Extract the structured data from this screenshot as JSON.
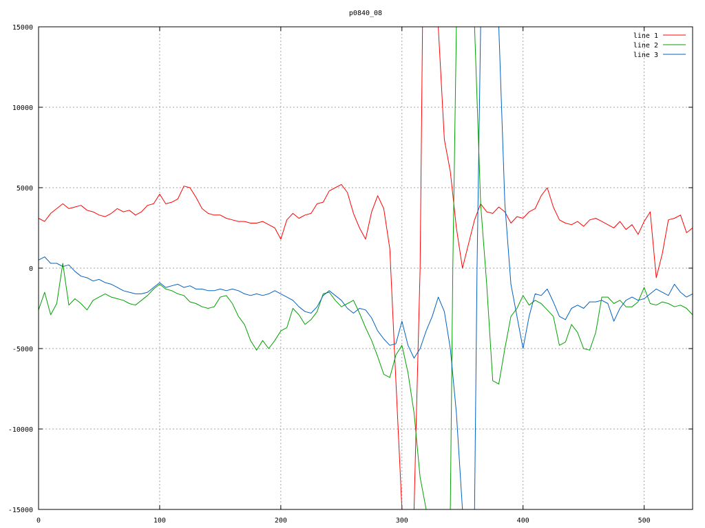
{
  "chart_data": {
    "type": "line",
    "title": "p0840_08",
    "xlabel": "",
    "ylabel": "",
    "xlim": [
      0,
      540
    ],
    "ylim": [
      -15000,
      15000
    ],
    "xticks": [
      0,
      100,
      200,
      300,
      400,
      500
    ],
    "yticks": [
      -15000,
      -10000,
      -5000,
      0,
      5000,
      10000,
      15000
    ],
    "grid": true,
    "legend_position": "top-right",
    "series": [
      {
        "name": "line 1",
        "color": "#ff0000",
        "x": [
          0,
          5,
          10,
          15,
          20,
          25,
          30,
          35,
          40,
          45,
          50,
          55,
          60,
          65,
          70,
          75,
          80,
          85,
          90,
          95,
          100,
          105,
          110,
          115,
          120,
          125,
          130,
          135,
          140,
          145,
          150,
          155,
          160,
          165,
          170,
          175,
          180,
          185,
          190,
          195,
          200,
          205,
          210,
          215,
          220,
          225,
          230,
          235,
          240,
          245,
          250,
          255,
          260,
          265,
          270,
          275,
          280,
          285,
          290,
          295,
          300,
          305,
          310,
          315,
          317,
          318,
          319,
          320,
          325,
          330,
          335,
          340,
          345,
          350,
          355,
          360,
          365,
          370,
          375,
          380,
          385,
          390,
          395,
          400,
          405,
          410,
          415,
          420,
          425,
          430,
          435,
          440,
          445,
          450,
          455,
          460,
          465,
          470,
          475,
          480,
          485,
          490,
          495,
          500,
          505,
          510,
          515,
          520,
          525,
          530,
          535,
          540
        ],
        "y": [
          3100,
          2900,
          3400,
          3700,
          4000,
          3700,
          3800,
          3900,
          3600,
          3500,
          3300,
          3200,
          3400,
          3700,
          3500,
          3600,
          3300,
          3500,
          3900,
          4000,
          4600,
          4000,
          4100,
          4300,
          5100,
          5000,
          4400,
          3700,
          3400,
          3300,
          3300,
          3100,
          3000,
          2900,
          2900,
          2800,
          2800,
          2900,
          2700,
          2500,
          1800,
          3000,
          3400,
          3100,
          3300,
          3400,
          4000,
          4100,
          4800,
          5000,
          5200,
          4700,
          3400,
          2500,
          1800,
          3500,
          4500,
          3700,
          1200,
          -7000,
          -15000,
          -15000,
          -15000,
          0,
          15000,
          15000,
          15000,
          15000,
          15000,
          15000,
          8000,
          6000,
          2500,
          0,
          1500,
          3000,
          4000,
          3500,
          3400,
          3800,
          3500,
          2800,
          3200,
          3100,
          3500,
          3700,
          4500,
          5000,
          3800,
          3000,
          2800,
          2700,
          2900,
          2600,
          3000,
          3100,
          2900,
          2700,
          2500,
          2900,
          2400,
          2700,
          2100,
          2900,
          3500,
          -600,
          900,
          3000,
          3100,
          3300,
          2200,
          2500
        ]
      },
      {
        "name": "line 2",
        "color": "#00a000",
        "x": [
          0,
          5,
          10,
          15,
          20,
          25,
          30,
          35,
          40,
          45,
          50,
          55,
          60,
          65,
          70,
          75,
          80,
          85,
          90,
          95,
          100,
          105,
          110,
          115,
          120,
          125,
          130,
          135,
          140,
          145,
          150,
          155,
          160,
          165,
          170,
          175,
          180,
          185,
          190,
          195,
          200,
          205,
          210,
          215,
          220,
          225,
          230,
          235,
          240,
          245,
          250,
          255,
          260,
          265,
          270,
          275,
          280,
          285,
          290,
          295,
          300,
          305,
          310,
          315,
          320,
          325,
          330,
          335,
          340,
          342,
          345,
          350,
          355,
          360,
          365,
          370,
          375,
          380,
          385,
          390,
          395,
          400,
          405,
          410,
          415,
          420,
          425,
          430,
          435,
          440,
          445,
          450,
          455,
          460,
          465,
          470,
          475,
          480,
          485,
          490,
          495,
          500,
          505,
          510,
          515,
          520,
          525,
          530,
          535,
          540
        ],
        "y": [
          -2600,
          -1500,
          -2900,
          -2200,
          300,
          -2300,
          -1900,
          -2200,
          -2600,
          -2000,
          -1800,
          -1600,
          -1800,
          -1900,
          -2000,
          -2200,
          -2300,
          -2000,
          -1700,
          -1300,
          -1000,
          -1300,
          -1400,
          -1600,
          -1700,
          -2100,
          -2200,
          -2400,
          -2500,
          -2400,
          -1800,
          -1700,
          -2200,
          -3000,
          -3500,
          -4500,
          -5100,
          -4500,
          -5000,
          -4500,
          -3900,
          -3700,
          -2500,
          -2900,
          -3500,
          -3200,
          -2700,
          -1600,
          -1500,
          -2000,
          -2400,
          -2200,
          -2000,
          -2800,
          -3700,
          -4500,
          -5500,
          -6600,
          -6800,
          -5400,
          -4800,
          -6500,
          -9000,
          -13000,
          -15000,
          -15000,
          -15000,
          -15000,
          -15000,
          0,
          15000,
          15000,
          15000,
          15000,
          4000,
          -1000,
          -7000,
          -7200,
          -5000,
          -3000,
          -2500,
          -1700,
          -2300,
          -2000,
          -2200,
          -2600,
          -3000,
          -4800,
          -4600,
          -3500,
          -4000,
          -5000,
          -5100,
          -4000,
          -1800,
          -1800,
          -2200,
          -2000,
          -2400,
          -2400,
          -2100,
          -1200,
          -2200,
          -2300,
          -2100,
          -2200,
          -2400,
          -2300,
          -2500,
          -2900
        ]
      },
      {
        "name": "line 3",
        "color": "#0060c0",
        "x": [
          0,
          5,
          10,
          15,
          20,
          25,
          30,
          35,
          40,
          45,
          50,
          55,
          60,
          65,
          70,
          75,
          80,
          85,
          90,
          95,
          100,
          105,
          110,
          115,
          120,
          125,
          130,
          135,
          140,
          145,
          150,
          155,
          160,
          165,
          170,
          175,
          180,
          185,
          190,
          195,
          200,
          205,
          210,
          215,
          220,
          225,
          230,
          235,
          240,
          245,
          250,
          255,
          260,
          265,
          270,
          275,
          280,
          285,
          290,
          295,
          300,
          305,
          310,
          315,
          320,
          325,
          330,
          335,
          340,
          345,
          350,
          355,
          360,
          362,
          365,
          370,
          375,
          380,
          385,
          390,
          395,
          400,
          405,
          410,
          415,
          420,
          425,
          430,
          435,
          440,
          445,
          450,
          455,
          460,
          465,
          470,
          475,
          480,
          485,
          490,
          495,
          500,
          505,
          510,
          515,
          520,
          525,
          530,
          535,
          540
        ],
        "y": [
          500,
          700,
          300,
          300,
          100,
          200,
          -200,
          -500,
          -600,
          -800,
          -700,
          -900,
          -1000,
          -1200,
          -1400,
          -1500,
          -1600,
          -1600,
          -1500,
          -1200,
          -900,
          -1200,
          -1100,
          -1000,
          -1200,
          -1100,
          -1300,
          -1300,
          -1400,
          -1400,
          -1300,
          -1400,
          -1300,
          -1400,
          -1600,
          -1700,
          -1600,
          -1700,
          -1600,
          -1400,
          -1600,
          -1800,
          -2000,
          -2400,
          -2700,
          -2800,
          -2400,
          -1700,
          -1400,
          -1700,
          -2000,
          -2500,
          -2800,
          -2500,
          -2600,
          -3100,
          -3900,
          -4400,
          -4800,
          -4700,
          -3300,
          -4800,
          -5600,
          -5000,
          -3900,
          -3000,
          -1800,
          -2700,
          -5000,
          -9000,
          -15000,
          -15000,
          -15000,
          0,
          15000,
          15000,
          15000,
          15000,
          4000,
          -1000,
          -3000,
          -5000,
          -3000,
          -1600,
          -1700,
          -1300,
          -2100,
          -3000,
          -3200,
          -2500,
          -2300,
          -2500,
          -2100,
          -2100,
          -2000,
          -2200,
          -3300,
          -2500,
          -2000,
          -1800,
          -2000,
          -1900,
          -1600,
          -1300,
          -1500,
          -1700,
          -1000,
          -1500,
          -1800,
          -1600
        ]
      }
    ]
  }
}
